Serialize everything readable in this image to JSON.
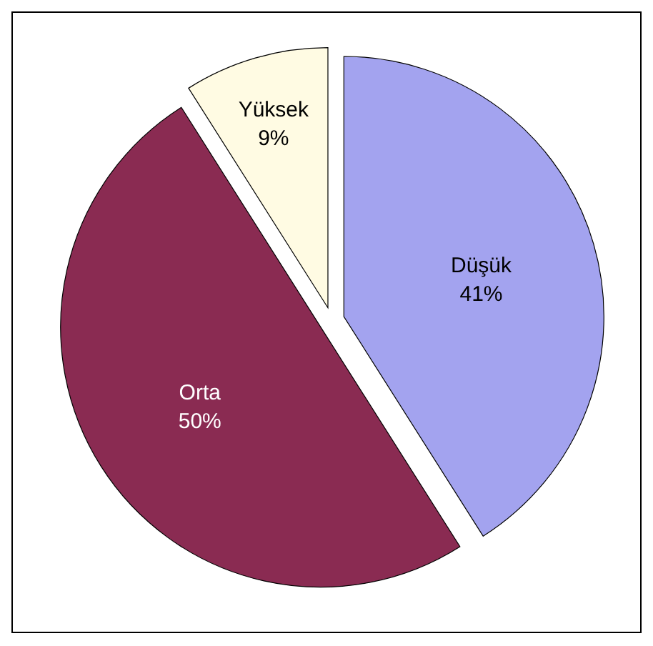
{
  "chart_data": {
    "type": "pie",
    "categories": [
      "Düşük",
      "Orta",
      "Yüksek"
    ],
    "values": [
      41,
      50,
      9
    ],
    "colors": [
      "#a3a3ef",
      "#8a2b52",
      "#fffbe3"
    ],
    "value_labels": [
      "41%",
      "50%",
      "9%"
    ],
    "legend": false
  }
}
